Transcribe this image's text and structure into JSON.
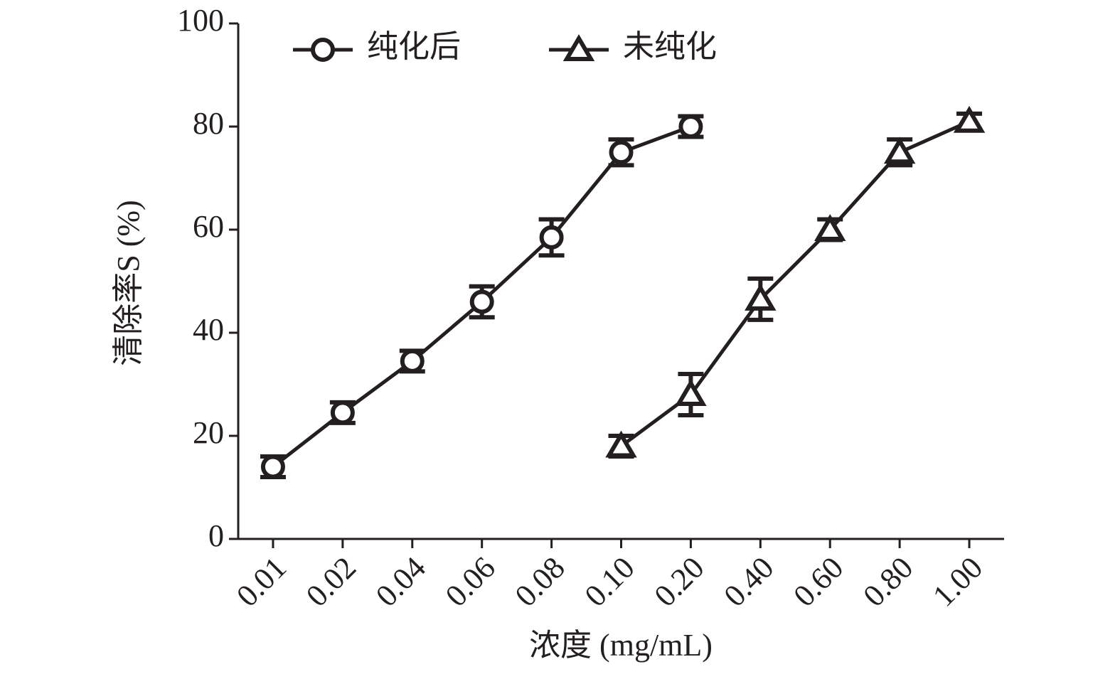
{
  "chart_data": {
    "type": "line",
    "x_label": "浓度 (mg/mL)",
    "y_label": "清除率S (%)",
    "categories": [
      "0.01",
      "0.02",
      "0.04",
      "0.06",
      "0.08",
      "0.10",
      "0.20",
      "0.40",
      "0.60",
      "0.80",
      "1.00"
    ],
    "series": [
      {
        "name": "纯化后",
        "color": "#231f20",
        "marker": "circle",
        "values": [
          14,
          24.5,
          34.5,
          46,
          58.5,
          75,
          80,
          null,
          null,
          null,
          null
        ],
        "errors": [
          2,
          2,
          2,
          3,
          3.5,
          2.5,
          2,
          null,
          null,
          null,
          null
        ]
      },
      {
        "name": "未纯化",
        "color": "#231f20",
        "marker": "triangle",
        "values": [
          null,
          null,
          null,
          null,
          null,
          18,
          28,
          46.5,
          60,
          75,
          81
        ],
        "errors": [
          null,
          null,
          null,
          null,
          null,
          2,
          4,
          4,
          2,
          2.5,
          1.5
        ]
      }
    ],
    "ylim": [
      0,
      100
    ],
    "yticks": [
      0,
      20,
      40,
      60,
      80,
      100
    ],
    "grid": false,
    "legend": "top"
  }
}
